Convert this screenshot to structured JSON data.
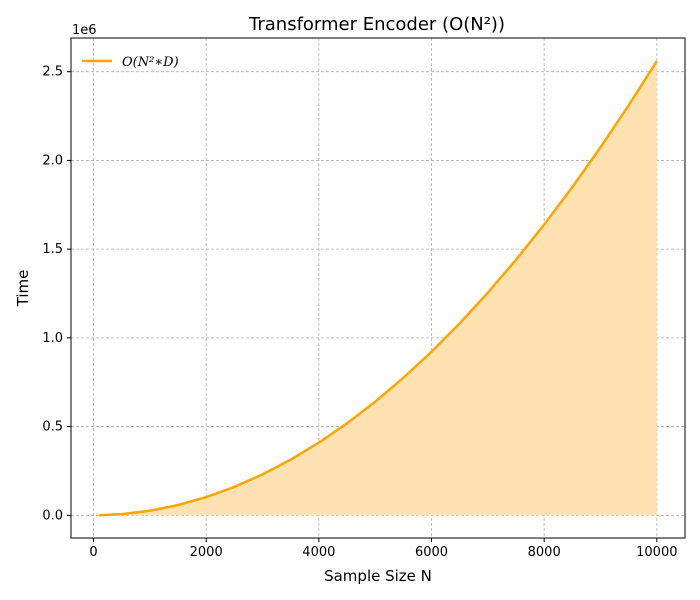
{
  "chart_data": {
    "type": "area",
    "title": "Transformer Encoder (O(N²))",
    "xlabel": "Sample Size N",
    "ylabel": "Time",
    "y_offset_label": "1e6",
    "xlim": [
      -400,
      10500
    ],
    "ylim": [
      -128000,
      2690000
    ],
    "x_ticks": [
      0,
      2000,
      4000,
      6000,
      8000,
      10000
    ],
    "x_tick_labels": [
      "0",
      "2000",
      "4000",
      "6000",
      "8000",
      "10000"
    ],
    "y_ticks": [
      0,
      500000,
      1000000,
      1500000,
      2000000,
      2500000
    ],
    "y_tick_labels": [
      "0.0",
      "0.5",
      "1.0",
      "1.5",
      "2.0",
      "2.5"
    ],
    "grid": true,
    "legend_position": "top-left",
    "series": [
      {
        "name": "O(N²∗D)",
        "color": "#FFA500",
        "fill_color": "#FFE2B2",
        "x": [
          100,
          500,
          1000,
          1500,
          2000,
          2500,
          3000,
          3500,
          4000,
          4500,
          5000,
          5500,
          6000,
          6500,
          7000,
          7500,
          8000,
          8500,
          9000,
          9500,
          10000
        ],
        "y": [
          256,
          6400,
          25600,
          57600,
          102400,
          160000,
          230400,
          313600,
          409600,
          518400,
          640000,
          774400,
          921600,
          1081600,
          1254400,
          1440000,
          1638400,
          1849600,
          2073600,
          2310400,
          2560000
        ]
      }
    ]
  }
}
